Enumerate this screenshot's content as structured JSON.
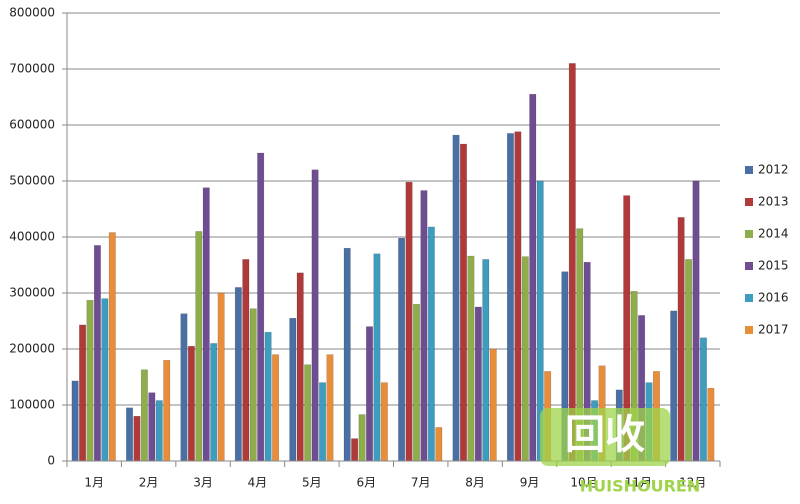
{
  "chart_data": {
    "type": "bar",
    "categories": [
      "1月",
      "2月",
      "3月",
      "4月",
      "5月",
      "6月",
      "7月",
      "8月",
      "9月",
      "10月",
      "11月",
      "12月"
    ],
    "series": [
      {
        "name": "2012",
        "color": "#4a6fa5",
        "values": [
          143000,
          95000,
          263000,
          310000,
          255000,
          380000,
          398000,
          582000,
          585000,
          338000,
          127000,
          268000
        ]
      },
      {
        "name": "2013",
        "color": "#b03a3a",
        "values": [
          243000,
          80000,
          205000,
          360000,
          336000,
          40000,
          498000,
          566000,
          588000,
          710000,
          474000,
          435000
        ]
      },
      {
        "name": "2014",
        "color": "#8fad4b",
        "values": [
          287000,
          163000,
          410000,
          272000,
          172000,
          83000,
          280000,
          366000,
          365000,
          415000,
          303000,
          360000
        ]
      },
      {
        "name": "2015",
        "color": "#6e4d92",
        "values": [
          385000,
          122000,
          488000,
          550000,
          520000,
          240000,
          483000,
          275000,
          655000,
          355000,
          260000,
          500000
        ]
      },
      {
        "name": "2016",
        "color": "#3e9cbf",
        "values": [
          290000,
          108000,
          210000,
          230000,
          140000,
          370000,
          418000,
          360000,
          500000,
          108000,
          140000,
          220000
        ]
      },
      {
        "name": "2017",
        "color": "#e88d3a",
        "values": [
          408000,
          180000,
          300000,
          190000,
          190000,
          140000,
          60000,
          200000,
          160000,
          170000,
          160000,
          130000
        ]
      }
    ],
    "ylim": [
      0,
      800000
    ],
    "yticks": [
      0,
      100000,
      200000,
      300000,
      400000,
      500000,
      600000,
      700000,
      800000
    ],
    "grid": true,
    "legend": "right"
  },
  "watermark": {
    "logo": "回收",
    "text": "HUISHOUREN"
  }
}
